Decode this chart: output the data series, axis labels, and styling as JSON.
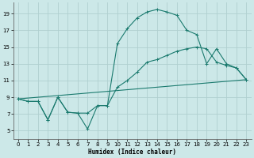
{
  "xlabel": "Humidex (Indice chaleur)",
  "bg_color": "#cce8e8",
  "line_color": "#1a7a6e",
  "grid_color": "#b0d0d0",
  "xlim": [
    -0.5,
    23.5
  ],
  "ylim": [
    4.0,
    20.3
  ],
  "xticks": [
    0,
    1,
    2,
    3,
    4,
    5,
    6,
    7,
    8,
    9,
    10,
    11,
    12,
    13,
    14,
    15,
    16,
    17,
    18,
    19,
    20,
    21,
    22,
    23
  ],
  "yticks": [
    5,
    7,
    9,
    11,
    13,
    15,
    17,
    19
  ],
  "line1_x": [
    0,
    1,
    2,
    3,
    4,
    5,
    6,
    7,
    8,
    9,
    10,
    11,
    12,
    13,
    14,
    15,
    16,
    17,
    18,
    19,
    20,
    21,
    22,
    23
  ],
  "line1_y": [
    8.8,
    8.5,
    8.5,
    6.3,
    9.0,
    7.2,
    7.1,
    5.2,
    8.0,
    8.0,
    15.4,
    17.2,
    18.5,
    19.2,
    19.5,
    19.2,
    18.8,
    17.0,
    16.5,
    13.0,
    14.8,
    13.0,
    12.5,
    11.1
  ],
  "line2_x": [
    0,
    1,
    2,
    3,
    4,
    5,
    6,
    7,
    8,
    9,
    10,
    11,
    12,
    13,
    14,
    15,
    16,
    17,
    18,
    19,
    20,
    21,
    22,
    23
  ],
  "line2_y": [
    8.8,
    8.5,
    8.5,
    6.3,
    9.0,
    7.2,
    7.1,
    7.1,
    8.0,
    8.0,
    10.2,
    11.0,
    12.0,
    13.2,
    13.5,
    14.0,
    14.5,
    14.8,
    15.0,
    14.8,
    13.2,
    12.8,
    12.5,
    11.1
  ],
  "line3_x": [
    0,
    23
  ],
  "line3_y": [
    8.8,
    11.1
  ]
}
